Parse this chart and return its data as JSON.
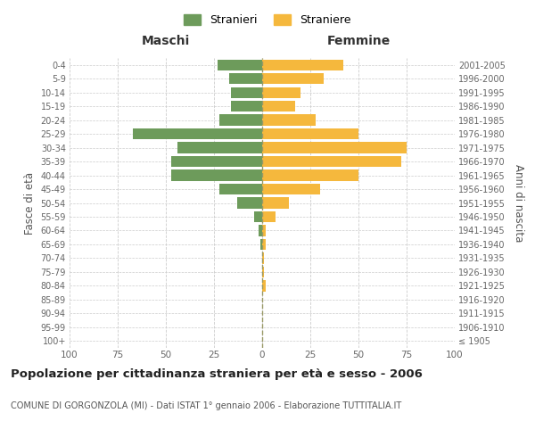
{
  "age_groups": [
    "100+",
    "95-99",
    "90-94",
    "85-89",
    "80-84",
    "75-79",
    "70-74",
    "65-69",
    "60-64",
    "55-59",
    "50-54",
    "45-49",
    "40-44",
    "35-39",
    "30-34",
    "25-29",
    "20-24",
    "15-19",
    "10-14",
    "5-9",
    "0-4"
  ],
  "birth_years": [
    "≤ 1905",
    "1906-1910",
    "1911-1915",
    "1916-1920",
    "1921-1925",
    "1926-1930",
    "1931-1935",
    "1936-1940",
    "1941-1945",
    "1946-1950",
    "1951-1955",
    "1956-1960",
    "1961-1965",
    "1966-1970",
    "1971-1975",
    "1976-1980",
    "1981-1985",
    "1986-1990",
    "1991-1995",
    "1996-2000",
    "2001-2005"
  ],
  "males": [
    0,
    0,
    0,
    0,
    0,
    0,
    0,
    1,
    2,
    4,
    13,
    22,
    47,
    47,
    44,
    67,
    22,
    16,
    16,
    17,
    23
  ],
  "females": [
    0,
    0,
    0,
    0,
    2,
    1,
    1,
    2,
    2,
    7,
    14,
    30,
    50,
    72,
    75,
    50,
    28,
    17,
    20,
    32,
    42
  ],
  "male_color": "#6d9b5b",
  "female_color": "#f5b83d",
  "background_color": "#ffffff",
  "grid_color": "#cccccc",
  "title": "Popolazione per cittadinanza straniera per età e sesso - 2006",
  "subtitle": "COMUNE DI GORGONZOLA (MI) - Dati ISTAT 1° gennaio 2006 - Elaborazione TUTTITALIA.IT",
  "legend_male": "Stranieri",
  "legend_female": "Straniere",
  "xlabel_left": "Maschi",
  "xlabel_right": "Femmine",
  "ylabel_left": "Fasce di età",
  "ylabel_right": "Anni di nascita",
  "xlim": 100,
  "center_line_color": "#aaaaaa"
}
